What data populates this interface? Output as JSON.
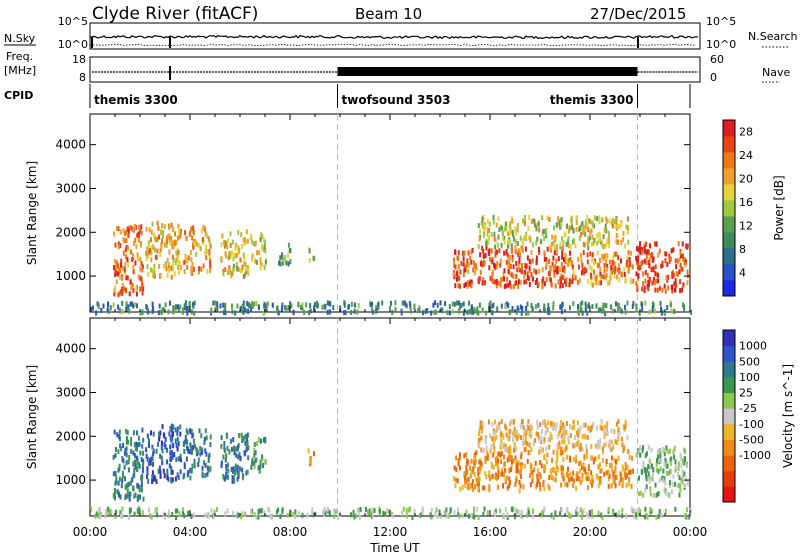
{
  "header": {
    "station": "Clyde River (fitACF)",
    "beam": "Beam 10",
    "date": "27/Dec/2015"
  },
  "summary": {
    "left_labels": [
      "N.Sky",
      "Freq.",
      "[MHz]",
      "CPID"
    ],
    "right_labels": [
      "N.Search",
      "Nave"
    ],
    "nsky_ticks": [
      "10^5",
      "10^0"
    ],
    "nsearch_ticks": [
      "10^5",
      "10^0"
    ],
    "freq_ticks": [
      "18",
      "8"
    ],
    "nave_ticks": [
      "60",
      "0"
    ],
    "cpid_segments": [
      {
        "label": "themis 3300",
        "start_hour": 0.0,
        "end_hour": 9.9
      },
      {
        "label": "twofsound 3503",
        "start_hour": 9.9,
        "end_hour": 21.9
      },
      {
        "label": "themis 3300",
        "start_hour": 21.9,
        "end_hour": 24.0
      }
    ]
  },
  "colors": {
    "power_scale": [
      "#1e28e6",
      "#2850c8",
      "#2e6e8c",
      "#3c8c5a",
      "#5aa050",
      "#a0c83c",
      "#e6d23c",
      "#f0a028",
      "#f07814",
      "#e64614",
      "#dc1e1e"
    ],
    "velocity_scale": [
      "#2d32b4",
      "#2f55c8",
      "#2f7a8c",
      "#3c9650",
      "#8cc850",
      "#c8c8c8",
      "#f0b428",
      "#f08c14",
      "#ec640a",
      "#e63c0a",
      "#e61414"
    ]
  },
  "chart_data": [
    {
      "type": "heatmap",
      "title": "Power",
      "xlabel": "Time UT",
      "ylabel": "Slant Range [km]",
      "xlim_hours": [
        0,
        24
      ],
      "ylim": [
        180,
        4700
      ],
      "x_tick_labels": [
        "00:00",
        "04:00",
        "08:00",
        "12:00",
        "16:00",
        "20:00",
        "00:00"
      ],
      "y_ticks": [
        1000,
        2000,
        3000,
        4000
      ],
      "colorbar_label": "Power [dB]",
      "colorbar_ticks": [
        "4",
        "8",
        "12",
        "16",
        "20",
        "24",
        "28"
      ],
      "colorbar_range": [
        0,
        30
      ],
      "regions": [
        {
          "t0": 0.9,
          "t1": 2.1,
          "r0": 600,
          "r1": 2200,
          "mean": 25
        },
        {
          "t0": 2.2,
          "t1": 3.6,
          "r0": 1000,
          "r1": 2300,
          "mean": 20
        },
        {
          "t0": 3.7,
          "t1": 4.8,
          "r0": 1100,
          "r1": 2200,
          "mean": 22
        },
        {
          "t0": 5.2,
          "t1": 6.3,
          "r0": 1000,
          "r1": 2100,
          "mean": 19
        },
        {
          "t0": 6.4,
          "t1": 7.0,
          "r0": 1200,
          "r1": 2000,
          "mean": 16
        },
        {
          "t0": 7.5,
          "t1": 8.0,
          "r0": 1300,
          "r1": 1800,
          "mean": 12
        },
        {
          "t0": 8.7,
          "t1": 9.0,
          "r0": 1400,
          "r1": 1700,
          "mean": 18
        },
        {
          "t0": 14.5,
          "t1": 19.0,
          "r0": 800,
          "r1": 1700,
          "mean": 27
        },
        {
          "t0": 15.5,
          "t1": 21.5,
          "r0": 1700,
          "r1": 2400,
          "mean": 17
        },
        {
          "t0": 19.0,
          "t1": 21.7,
          "r0": 850,
          "r1": 1600,
          "mean": 24
        },
        {
          "t0": 21.8,
          "t1": 23.9,
          "r0": 700,
          "r1": 1800,
          "mean": 28
        },
        {
          "t0": 0.0,
          "t1": 24.0,
          "r0": 200,
          "r1": 450,
          "mean": 8
        }
      ]
    },
    {
      "type": "heatmap",
      "title": "Velocity",
      "xlabel": "Time UT",
      "ylabel": "Slant Range [km]",
      "xlim_hours": [
        0,
        24
      ],
      "ylim": [
        180,
        4700
      ],
      "x_tick_labels": [
        "00:00",
        "04:00",
        "08:00",
        "12:00",
        "16:00",
        "20:00",
        "00:00"
      ],
      "y_ticks": [
        1000,
        2000,
        3000,
        4000
      ],
      "colorbar_label": "Velocity [m s^-1]",
      "colorbar_ticks": [
        "1000",
        "500",
        "100",
        "25",
        "-25",
        "-100",
        "-500",
        "-1000"
      ],
      "regions": [
        {
          "t0": 0.9,
          "t1": 2.1,
          "r0": 600,
          "r1": 2200,
          "mean": 2
        },
        {
          "t0": 2.2,
          "t1": 3.6,
          "r0": 1000,
          "r1": 2300,
          "mean": 1
        },
        {
          "t0": 3.7,
          "t1": 4.8,
          "r0": 1100,
          "r1": 2200,
          "mean": 2
        },
        {
          "t0": 5.2,
          "t1": 6.3,
          "r0": 1000,
          "r1": 2100,
          "mean": 2
        },
        {
          "t0": 6.4,
          "t1": 7.0,
          "r0": 1200,
          "r1": 2000,
          "mean": 3
        },
        {
          "t0": 8.7,
          "t1": 9.0,
          "r0": 1400,
          "r1": 1800,
          "mean": 7
        },
        {
          "t0": 14.5,
          "t1": 19.0,
          "r0": 800,
          "r1": 1700,
          "mean": 7
        },
        {
          "t0": 15.5,
          "t1": 21.5,
          "r0": 1700,
          "r1": 2400,
          "mean": 6
        },
        {
          "t0": 19.0,
          "t1": 21.7,
          "r0": 850,
          "r1": 1600,
          "mean": 7
        },
        {
          "t0": 21.8,
          "t1": 23.9,
          "r0": 700,
          "r1": 1800,
          "mean": 4
        },
        {
          "t0": 0.0,
          "t1": 24.0,
          "r0": 200,
          "r1": 400,
          "mean": 4
        }
      ]
    }
  ]
}
